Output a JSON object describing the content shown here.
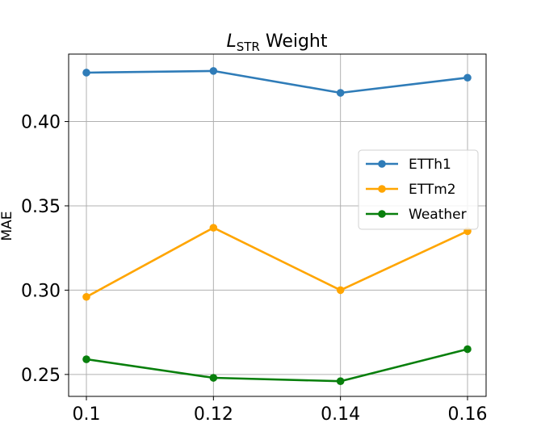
{
  "chart_data": {
    "type": "line",
    "title": "L",
    "title_subscript": "STR",
    "title_suffix": " Weight",
    "xlabel": "",
    "ylabel": "MAE",
    "x": [
      0.1,
      0.12,
      0.14,
      0.16
    ],
    "x_tick_labels": [
      "0.1",
      "0.12",
      "0.14",
      "0.16"
    ],
    "y_ticks": [
      0.25,
      0.3,
      0.35,
      0.4
    ],
    "y_tick_labels": [
      "0.25",
      "0.30",
      "0.35",
      "0.40"
    ],
    "ylim": [
      0.237,
      0.44
    ],
    "grid": true,
    "legend_position": "center-right",
    "series": [
      {
        "name": "ETTh1",
        "color": "#2f7cb8",
        "values": [
          0.429,
          0.43,
          0.417,
          0.426
        ]
      },
      {
        "name": "ETTm2",
        "color": "#ffa500",
        "values": [
          0.296,
          0.337,
          0.3,
          0.335
        ]
      },
      {
        "name": "Weather",
        "color": "#087f0c",
        "values": [
          0.259,
          0.248,
          0.246,
          0.265
        ]
      }
    ]
  }
}
